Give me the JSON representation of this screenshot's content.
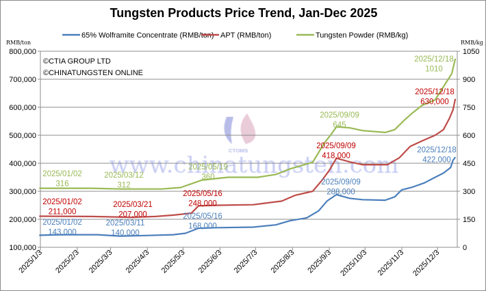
{
  "chart_data": {
    "type": "line",
    "title": "Tungsten Products Price Trend, Jan-Dec 2025",
    "copyright": [
      "©CTIA GROUP LTD",
      "©CHINATUNGSTEN ONLINE"
    ],
    "watermark": "www.chinatungsten.com",
    "logo_text": "CTOMS",
    "y_left": {
      "label": "RMB/ton",
      "min": 100000,
      "max": 800000,
      "ticks": [
        "100,000",
        "200,000",
        "300,000",
        "400,000",
        "500,000",
        "600,000",
        "700,000",
        "800,000"
      ]
    },
    "y_right": {
      "label": "RMB/kg",
      "min": 0,
      "max": 1050,
      "ticks": [
        "0",
        "150",
        "300",
        "450",
        "600",
        "750",
        "900",
        "1050"
      ]
    },
    "x_ticks": [
      "2025/1/3",
      "2025/2/3",
      "2025/3/3",
      "2025/4/3",
      "2025/5/3",
      "2025/6/3",
      "2025/7/3",
      "2025/8/3",
      "2025/9/3",
      "2025/10/3",
      "2025/11/3",
      "2025/12/3"
    ],
    "grid": true,
    "legend": "top",
    "series": [
      {
        "name": "65% Wolframite Concentrate (RMB/ton)",
        "axis": "left",
        "color": "#4a7ebb",
        "points": [
          [
            "2025-01-02",
            143000
          ],
          [
            "2025-01-20",
            145000
          ],
          [
            "2025-02-20",
            145000
          ],
          [
            "2025-03-11",
            140000
          ],
          [
            "2025-04-01",
            142000
          ],
          [
            "2025-04-25",
            145000
          ],
          [
            "2025-05-05",
            150000
          ],
          [
            "2025-05-16",
            168000
          ],
          [
            "2025-06-01",
            170000
          ],
          [
            "2025-07-01",
            172000
          ],
          [
            "2025-07-20",
            180000
          ],
          [
            "2025-08-01",
            195000
          ],
          [
            "2025-08-15",
            205000
          ],
          [
            "2025-08-25",
            230000
          ],
          [
            "2025-09-01",
            265000
          ],
          [
            "2025-09-09",
            288000
          ],
          [
            "2025-09-20",
            275000
          ],
          [
            "2025-10-01",
            270000
          ],
          [
            "2025-10-20",
            268000
          ],
          [
            "2025-10-28",
            280000
          ],
          [
            "2025-11-03",
            305000
          ],
          [
            "2025-11-12",
            315000
          ],
          [
            "2025-11-22",
            330000
          ],
          [
            "2025-12-01",
            350000
          ],
          [
            "2025-12-08",
            365000
          ],
          [
            "2025-12-14",
            385000
          ],
          [
            "2025-12-16",
            410000
          ],
          [
            "2025-12-18",
            422000
          ]
        ]
      },
      {
        "name": "APT (RMB/ton)",
        "axis": "left",
        "color": "#be4b48",
        "points": [
          [
            "2025-01-02",
            211000
          ],
          [
            "2025-02-15",
            210000
          ],
          [
            "2025-03-21",
            207000
          ],
          [
            "2025-04-10",
            210000
          ],
          [
            "2025-04-25",
            215000
          ],
          [
            "2025-05-10",
            222000
          ],
          [
            "2025-05-16",
            248000
          ],
          [
            "2025-06-01",
            250000
          ],
          [
            "2025-07-01",
            252000
          ],
          [
            "2025-07-25",
            265000
          ],
          [
            "2025-08-05",
            285000
          ],
          [
            "2025-08-20",
            300000
          ],
          [
            "2025-08-28",
            340000
          ],
          [
            "2025-09-03",
            375000
          ],
          [
            "2025-09-09",
            418000
          ],
          [
            "2025-09-20",
            405000
          ],
          [
            "2025-10-01",
            395000
          ],
          [
            "2025-10-22",
            395000
          ],
          [
            "2025-11-01",
            420000
          ],
          [
            "2025-11-10",
            460000
          ],
          [
            "2025-11-20",
            480000
          ],
          [
            "2025-12-01",
            500000
          ],
          [
            "2025-12-08",
            520000
          ],
          [
            "2025-12-13",
            560000
          ],
          [
            "2025-12-16",
            590000
          ],
          [
            "2025-12-18",
            630000
          ]
        ]
      },
      {
        "name": "Tungsten Powder (RMB/kg)",
        "axis": "right",
        "color": "#98b954",
        "points": [
          [
            "2025-01-02",
            316
          ],
          [
            "2025-02-15",
            316
          ],
          [
            "2025-03-12",
            312
          ],
          [
            "2025-04-15",
            312
          ],
          [
            "2025-05-01",
            320
          ],
          [
            "2025-05-19",
            360
          ],
          [
            "2025-06-10",
            375
          ],
          [
            "2025-07-05",
            375
          ],
          [
            "2025-07-20",
            390
          ],
          [
            "2025-08-01",
            420
          ],
          [
            "2025-08-20",
            455
          ],
          [
            "2025-08-30",
            560
          ],
          [
            "2025-09-04",
            600
          ],
          [
            "2025-09-09",
            645
          ],
          [
            "2025-09-20",
            640
          ],
          [
            "2025-10-01",
            625
          ],
          [
            "2025-10-20",
            615
          ],
          [
            "2025-10-28",
            630
          ],
          [
            "2025-11-05",
            680
          ],
          [
            "2025-11-12",
            720
          ],
          [
            "2025-11-20",
            760
          ],
          [
            "2025-12-01",
            790
          ],
          [
            "2025-12-10",
            880
          ],
          [
            "2025-12-15",
            930
          ],
          [
            "2025-12-18",
            1010
          ]
        ]
      }
    ],
    "annotations": [
      {
        "series": 2,
        "lines": [
          "2025/01/02",
          "316"
        ]
      },
      {
        "series": 2,
        "lines": [
          "2025/03/12",
          "312"
        ]
      },
      {
        "series": 2,
        "lines": [
          "2025/05/19",
          "360"
        ]
      },
      {
        "series": 2,
        "lines": [
          "2025/09/09",
          "645"
        ]
      },
      {
        "series": 2,
        "lines": [
          "2025/12/18",
          "1010"
        ]
      },
      {
        "series": 1,
        "lines": [
          "2025/01/02",
          "211,000"
        ]
      },
      {
        "series": 1,
        "lines": [
          "2025/03/21",
          "207,000"
        ]
      },
      {
        "series": 1,
        "lines": [
          "2025/05/16",
          "248,000"
        ]
      },
      {
        "series": 1,
        "lines": [
          "2025/09/09",
          "418,000"
        ]
      },
      {
        "series": 1,
        "lines": [
          "2025/12/18",
          "630,000"
        ]
      },
      {
        "series": 0,
        "lines": [
          "2025/01/02",
          "143,000"
        ]
      },
      {
        "series": 0,
        "lines": [
          "2025/03/11",
          "140,000"
        ]
      },
      {
        "series": 0,
        "lines": [
          "2025/05/16",
          "168,000"
        ]
      },
      {
        "series": 0,
        "lines": [
          "2025/09/09",
          "288,000"
        ]
      },
      {
        "series": 0,
        "lines": [
          "2025/12/18",
          "422,000"
        ]
      }
    ]
  }
}
